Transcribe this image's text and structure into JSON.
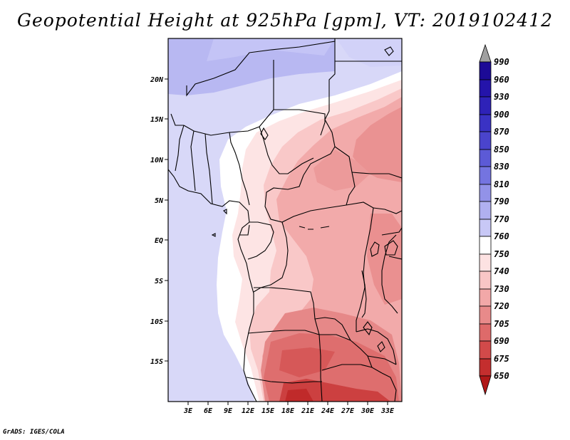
{
  "title": "Geopotential Height at 925hPa [gpm], VT: 2019102412",
  "credit": "GrADS: IGES/COLA",
  "map": {
    "lat_labels": [
      "20N",
      "15N",
      "10N",
      "5N",
      "EQ",
      "5S",
      "10S",
      "15S"
    ],
    "lon_labels": [
      "3E",
      "6E",
      "9E",
      "12E",
      "15E",
      "18E",
      "21E",
      "24E",
      "27E",
      "30E",
      "33E"
    ]
  },
  "colorbar": {
    "levels": [
      "990",
      "960",
      "930",
      "900",
      "870",
      "850",
      "830",
      "810",
      "790",
      "770",
      "760",
      "750",
      "740",
      "730",
      "720",
      "705",
      "690",
      "675",
      "650"
    ],
    "colors": {
      "top_arrow": "#a0a0a0",
      "bottom_arrow": "#b01818",
      "c0": "#1c0a96",
      "c1": "#2414aa",
      "c2": "#2e22b8",
      "c3": "#3a32c4",
      "c4": "#4a44cc",
      "c5": "#5c5ad6",
      "c6": "#7474e0",
      "c7": "#9292e8",
      "c8": "#b0b0f0",
      "c9": "#c8c8f6",
      "c10": "#e0e0fa",
      "c11": "#ffffff",
      "c12": "#fde2e2",
      "c13": "#f9c6c6",
      "c14": "#f2a8a8",
      "c15": "#e88a8a",
      "c16": "#de6a6a",
      "c17": "#d24a4a",
      "c18": "#c42e2e",
      "c19": "#b41c1c"
    }
  }
}
